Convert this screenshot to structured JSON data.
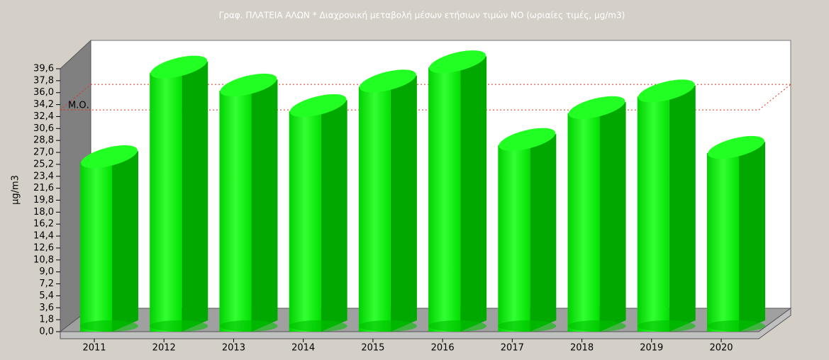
{
  "chart_data": {
    "type": "bar3d",
    "title": "Γραφ. ΠΛΑΤΕΙΑ ΑΛΩΝ * Διαχρονική μεταβολή μέσων ετήσιων τιμών NO (ωριαίες τιμές, μg/m3)",
    "y_label": "μg/m3",
    "categories": [
      "2011",
      "2012",
      "2013",
      "2014",
      "2015",
      "2016",
      "2017",
      "2018",
      "2019",
      "2020"
    ],
    "values": [
      25.5,
      39.0,
      36.3,
      33.2,
      36.9,
      39.8,
      28.1,
      32.9,
      35.4,
      26.9
    ],
    "color": "#00e600",
    "mean_line": {
      "label": "Μ.Ο.",
      "value": 33.4,
      "color": "#e03020"
    },
    "ylim": [
      0,
      39.6
    ],
    "yticks": [
      {
        "value": 0,
        "label": "0,0"
      },
      {
        "value": 1.8,
        "label": "1,8"
      },
      {
        "value": 3.6,
        "label": "3,6"
      },
      {
        "value": 5.4,
        "label": "5,4"
      },
      {
        "value": 7.2,
        "label": "7,2"
      },
      {
        "value": 9,
        "label": "9,0"
      },
      {
        "value": 10.8,
        "label": "10,8"
      },
      {
        "value": 12.6,
        "label": "12,6"
      },
      {
        "value": 14.4,
        "label": "14,4"
      },
      {
        "value": 16.2,
        "label": "16,2"
      },
      {
        "value": 18,
        "label": "18,0"
      },
      {
        "value": 19.8,
        "label": "19,8"
      },
      {
        "value": 21.6,
        "label": "21,6"
      },
      {
        "value": 23.4,
        "label": "23,4"
      },
      {
        "value": 25.2,
        "label": "25,2"
      },
      {
        "value": 27,
        "label": "27,0"
      },
      {
        "value": 28.8,
        "label": "28,8"
      },
      {
        "value": 30.6,
        "label": "30,6"
      },
      {
        "value": 32.4,
        "label": "32,4"
      },
      {
        "value": 34.2,
        "label": "34,2"
      },
      {
        "value": 36,
        "label": "36,0"
      },
      {
        "value": 37.8,
        "label": "37,8"
      },
      {
        "value": 39.6,
        "label": "39,6"
      }
    ]
  }
}
